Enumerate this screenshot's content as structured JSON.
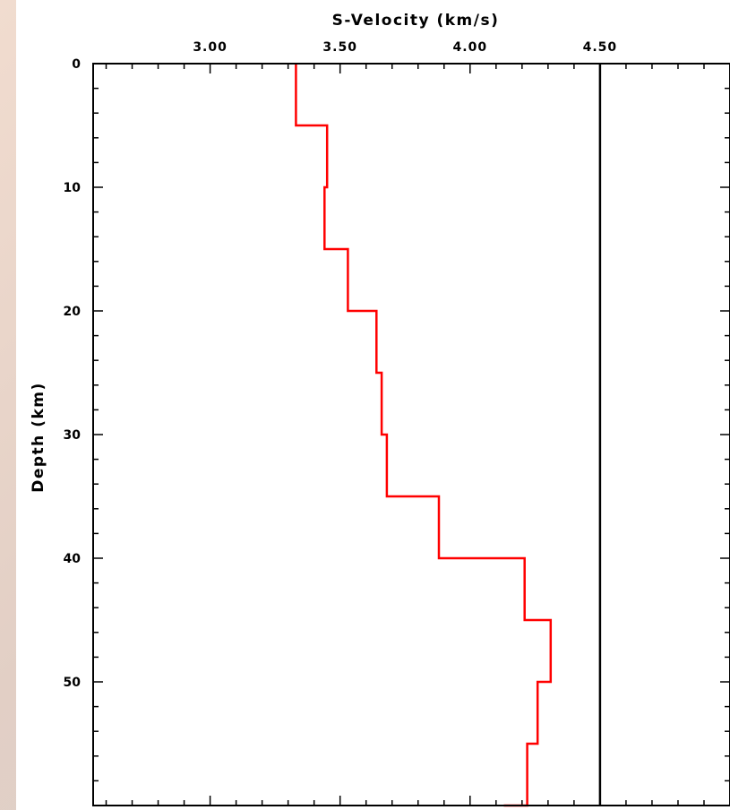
{
  "chart_data": {
    "type": "line",
    "title": "",
    "xlabel": "S-Velocity (km/s)",
    "ylabel": "Depth (km)",
    "x_ticks": [
      "3.00",
      "3.50",
      "4.00",
      "4.50"
    ],
    "y_ticks": [
      "0",
      "10",
      "20",
      "30",
      "40",
      "50"
    ],
    "xlim": [
      2.55,
      5.0
    ],
    "ylim": [
      0,
      60
    ],
    "y_inverted": true,
    "x_axis_position": "top",
    "grid": false,
    "series": [
      {
        "color": "#ff0000",
        "style": "step",
        "points": [
          [
            3.33,
            0
          ],
          [
            3.33,
            5
          ],
          [
            3.45,
            5
          ],
          [
            3.45,
            10
          ],
          [
            3.44,
            10
          ],
          [
            3.44,
            15
          ],
          [
            3.53,
            15
          ],
          [
            3.53,
            20
          ],
          [
            3.64,
            20
          ],
          [
            3.64,
            25
          ],
          [
            3.66,
            25
          ],
          [
            3.66,
            30
          ],
          [
            3.68,
            30
          ],
          [
            3.68,
            35
          ],
          [
            3.88,
            35
          ],
          [
            3.88,
            40
          ],
          [
            4.21,
            40
          ],
          [
            4.21,
            45
          ],
          [
            4.31,
            45
          ],
          [
            4.31,
            50
          ],
          [
            4.26,
            50
          ],
          [
            4.26,
            55
          ],
          [
            4.22,
            55
          ],
          [
            4.22,
            60
          ],
          [
            4.13,
            60
          ]
        ]
      }
    ],
    "reference_line": {
      "x": 4.5,
      "color": "#000000"
    }
  }
}
